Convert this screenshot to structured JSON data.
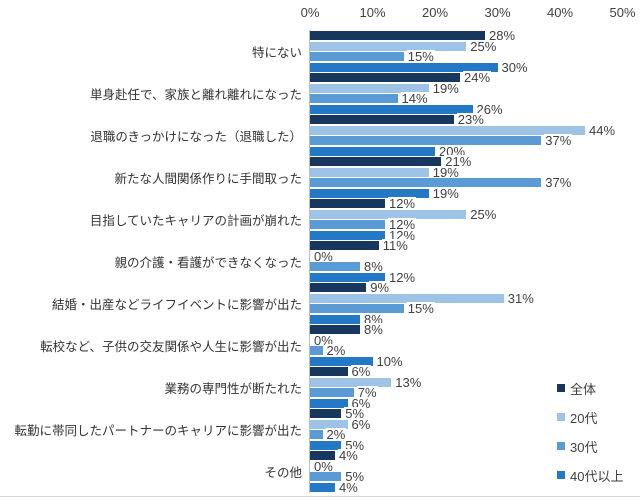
{
  "chart_data": {
    "type": "bar",
    "orientation": "horizontal",
    "title": "",
    "xlabel": "",
    "ylabel": "",
    "xlim": [
      0,
      50
    ],
    "grid": false,
    "legend_position": "right-bottom",
    "value_suffix": "%",
    "x_ticks": [
      "0%",
      "10%",
      "20%",
      "30%",
      "40%",
      "50%"
    ],
    "categories": [
      "特にない",
      "単身赴任で、家族と離れ離れになった",
      "退職のきっかけになった（退職した）",
      "新たな人間関係作りに手間取った",
      "目指していたキャリアの計画が崩れた",
      "親の介護・看護ができなくなった",
      "結婚・出産などライフイベントに影響が出た",
      "転校など、子供の交友関係や人生に影響が出た",
      "業務の専門性が断たれた",
      "転勤に帯同したパートナーのキャリアに影響が出た",
      "その他"
    ],
    "series": [
      {
        "name": "全体",
        "color": "#17375E",
        "values": [
          28,
          24,
          23,
          21,
          12,
          11,
          9,
          8,
          6,
          5,
          4
        ]
      },
      {
        "name": "20代",
        "color": "#9DC3E6",
        "values": [
          25,
          19,
          44,
          19,
          25,
          0,
          31,
          0,
          13,
          6,
          0
        ]
      },
      {
        "name": "30代",
        "color": "#5B9BD5",
        "values": [
          15,
          14,
          37,
          37,
          12,
          8,
          15,
          2,
          7,
          2,
          5
        ]
      },
      {
        "name": "40代以上",
        "color": "#2479C6",
        "values": [
          30,
          26,
          20,
          19,
          12,
          12,
          8,
          10,
          6,
          5,
          4
        ]
      }
    ]
  },
  "colors": {
    "tick_text": "#3f3f3f",
    "category_text": "#333333",
    "value_text": "#3f3f3f",
    "axis_line": "#b7bfca",
    "baseline": "#ccd8ea"
  }
}
